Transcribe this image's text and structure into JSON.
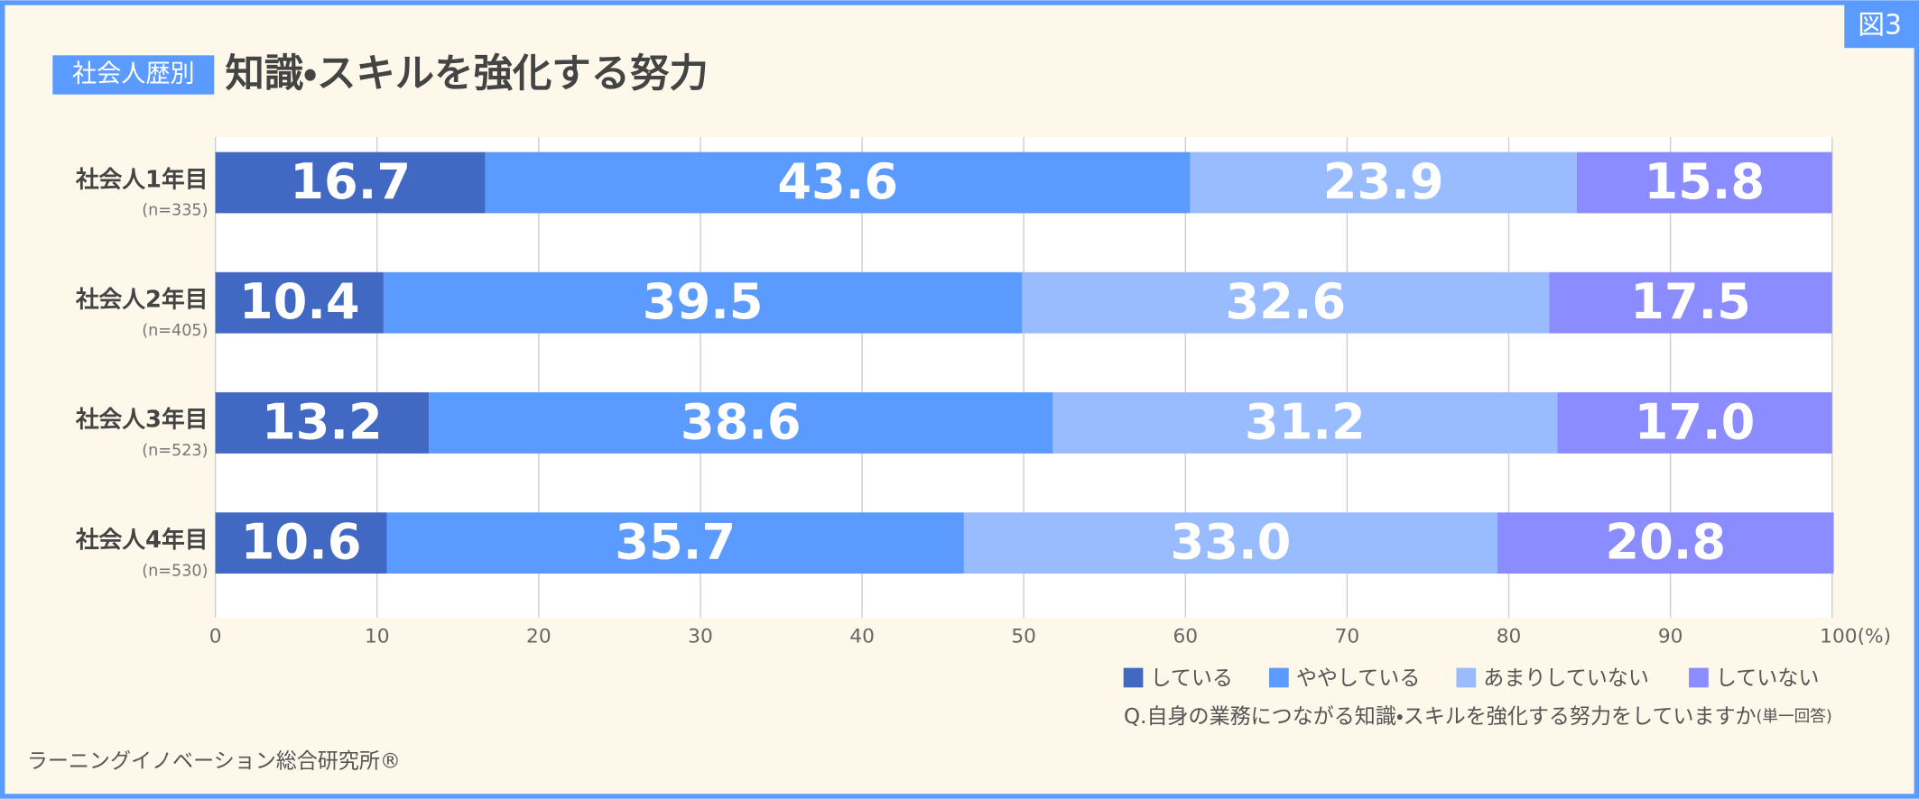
{
  "figure_label": "図3",
  "chart_data": {
    "type": "stacked-bar-horizontal",
    "badge": "社会人歴別",
    "title": "知識・スキルを強化する努力",
    "categories": [
      "社会人1年目",
      "社会人2年目",
      "社会人3年目",
      "社会人4年目"
    ],
    "category_notes": [
      "(n=335)",
      "(n=405)",
      "(n=523)",
      "(n=530)"
    ],
    "series": [
      {
        "name": "している",
        "color": "#4169c4",
        "values": [
          16.7,
          10.4,
          13.2,
          10.6
        ],
        "value_labels": [
          "16.7",
          "10.4",
          "13.2",
          "10.6"
        ]
      },
      {
        "name": "ややしている",
        "color": "#5b9bff",
        "values": [
          43.6,
          39.5,
          38.6,
          35.7
        ],
        "value_labels": [
          "43.6",
          "39.5",
          "38.6",
          "35.7"
        ]
      },
      {
        "name": "あまりしていない",
        "color": "#99bbff",
        "values": [
          23.9,
          32.6,
          31.2,
          33.0
        ],
        "value_labels": [
          "23.9",
          "32.6",
          "31.2",
          "33.0"
        ]
      },
      {
        "name": "していない",
        "color": "#8a8cff",
        "values": [
          15.8,
          17.5,
          17.0,
          20.8
        ],
        "value_labels": [
          "15.8",
          "17.5",
          "17.0",
          "20.8"
        ]
      }
    ],
    "xlim": [
      0,
      100
    ],
    "xticks": [
      0,
      10,
      20,
      30,
      40,
      50,
      60,
      70,
      80,
      90,
      {
        "value": 100,
        "label": "100(%)"
      }
    ],
    "grid": true,
    "question": "Q.自身の業務につながる知識・スキルを強化する努力をしていますか",
    "question_note": "(単一回答)"
  },
  "footer": "ラーニングイノベーション総合研究所®"
}
